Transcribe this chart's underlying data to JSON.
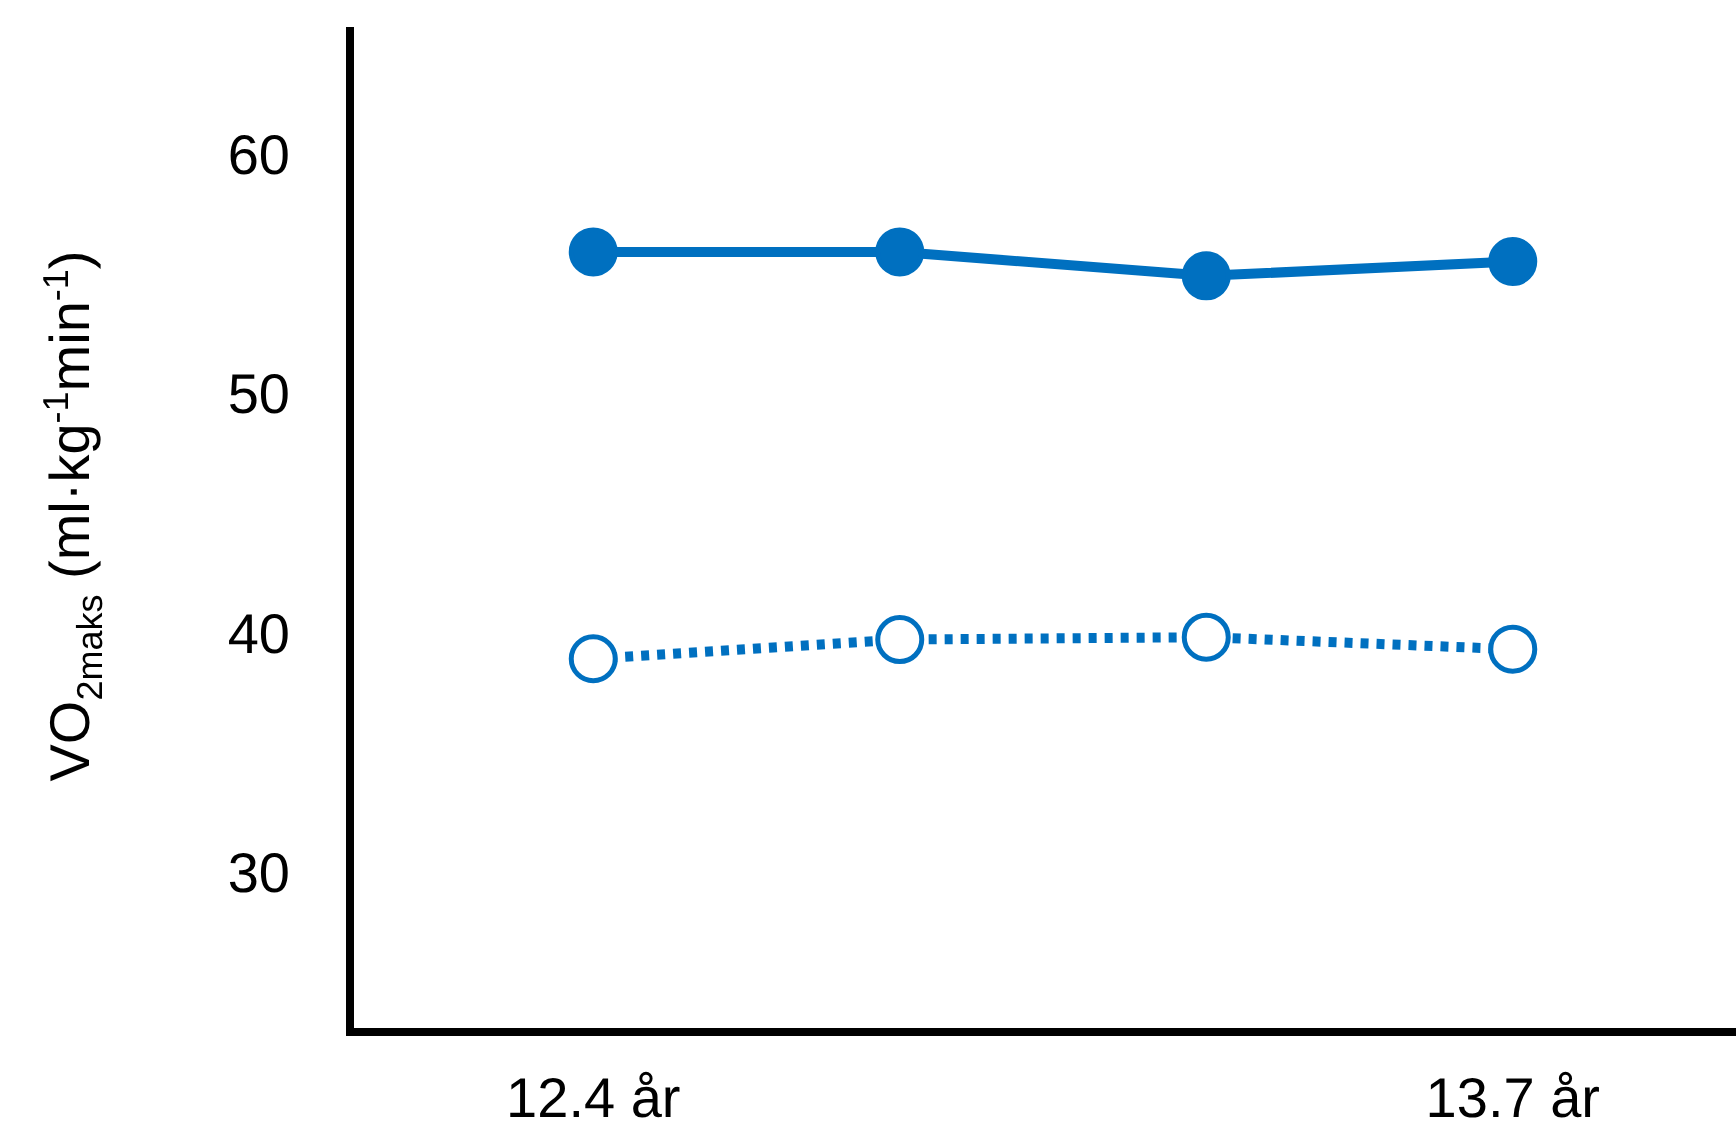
{
  "chart_data": {
    "type": "line",
    "ylabel": "VO$_{2maks}$ (ml·kg$^{-1}$min$^{-1}$)",
    "categories": [
      "12.4 år",
      null,
      null,
      "13.7 år"
    ],
    "series": [
      {
        "color": "#0070c0",
        "values": [
          56.1,
          56.1,
          55.1,
          55.7
        ],
        "line_style": "solid"
      },
      {
        "color": "#0070c0",
        "values": [
          39.1,
          39.9,
          40.0,
          39.5
        ],
        "line_style": "dotted"
      }
    ],
    "ylim": [
      23.5,
      65.5
    ],
    "yticks": [
      30,
      40,
      50,
      60
    ],
    "grid": false,
    "legend": false,
    "marker": "circle"
  }
}
